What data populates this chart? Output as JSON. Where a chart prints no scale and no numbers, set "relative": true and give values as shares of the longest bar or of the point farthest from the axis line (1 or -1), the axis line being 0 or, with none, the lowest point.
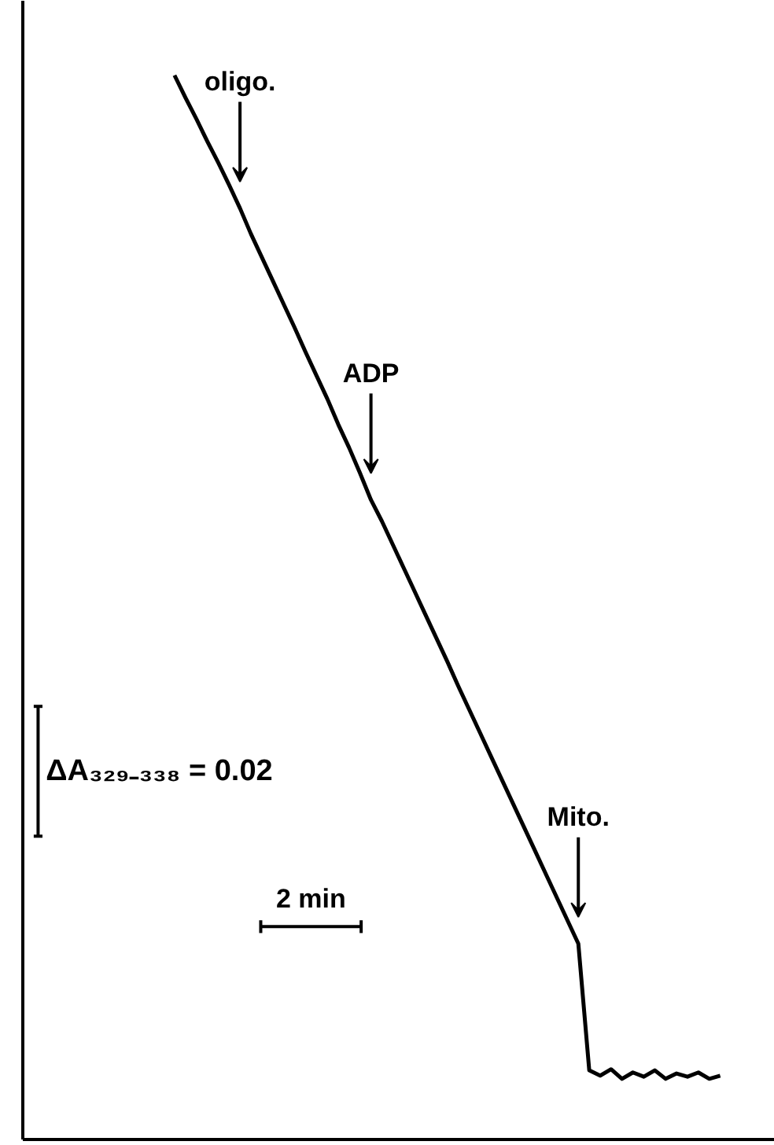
{
  "chart_data": {
    "type": "line",
    "relative": true,
    "categories": [
      null,
      null,
      null,
      null,
      null,
      null,
      null,
      null,
      null,
      null,
      null,
      null,
      null,
      null,
      null,
      null,
      null,
      null,
      null,
      null,
      null,
      null,
      null,
      null,
      null,
      null,
      null,
      null,
      null,
      null,
      null,
      null,
      null,
      null,
      null,
      null,
      null,
      null,
      null,
      null,
      null,
      null,
      null,
      null,
      null,
      null,
      null,
      null,
      null,
      null,
      null
    ],
    "series": [
      {
        "color": "#000000",
        "values": [
          1.0,
          0.979,
          0.959,
          0.938,
          0.918,
          0.897,
          0.875,
          0.851,
          0.829,
          0.807,
          0.785,
          0.763,
          0.74,
          0.718,
          0.696,
          0.672,
          0.65,
          0.626,
          0.601,
          0.581,
          0.559,
          0.537,
          0.515,
          0.493,
          0.471,
          0.449,
          0.426,
          0.404,
          0.382,
          0.36,
          0.338,
          0.316,
          0.294,
          0.272,
          0.25,
          0.228,
          0.206,
          0.184,
          0.065,
          0.06,
          0.066,
          0.057,
          0.063,
          0.059,
          0.065,
          0.057,
          0.062,
          0.059,
          0.063,
          0.057,
          0.06
        ]
      }
    ],
    "annotations": [
      "oligo.",
      "ADP",
      "Mito.",
      "ΔA₃₂₉₋₃₃₈ = 0.02",
      "2 min"
    ],
    "marker": "none",
    "line_style": "solid"
  }
}
